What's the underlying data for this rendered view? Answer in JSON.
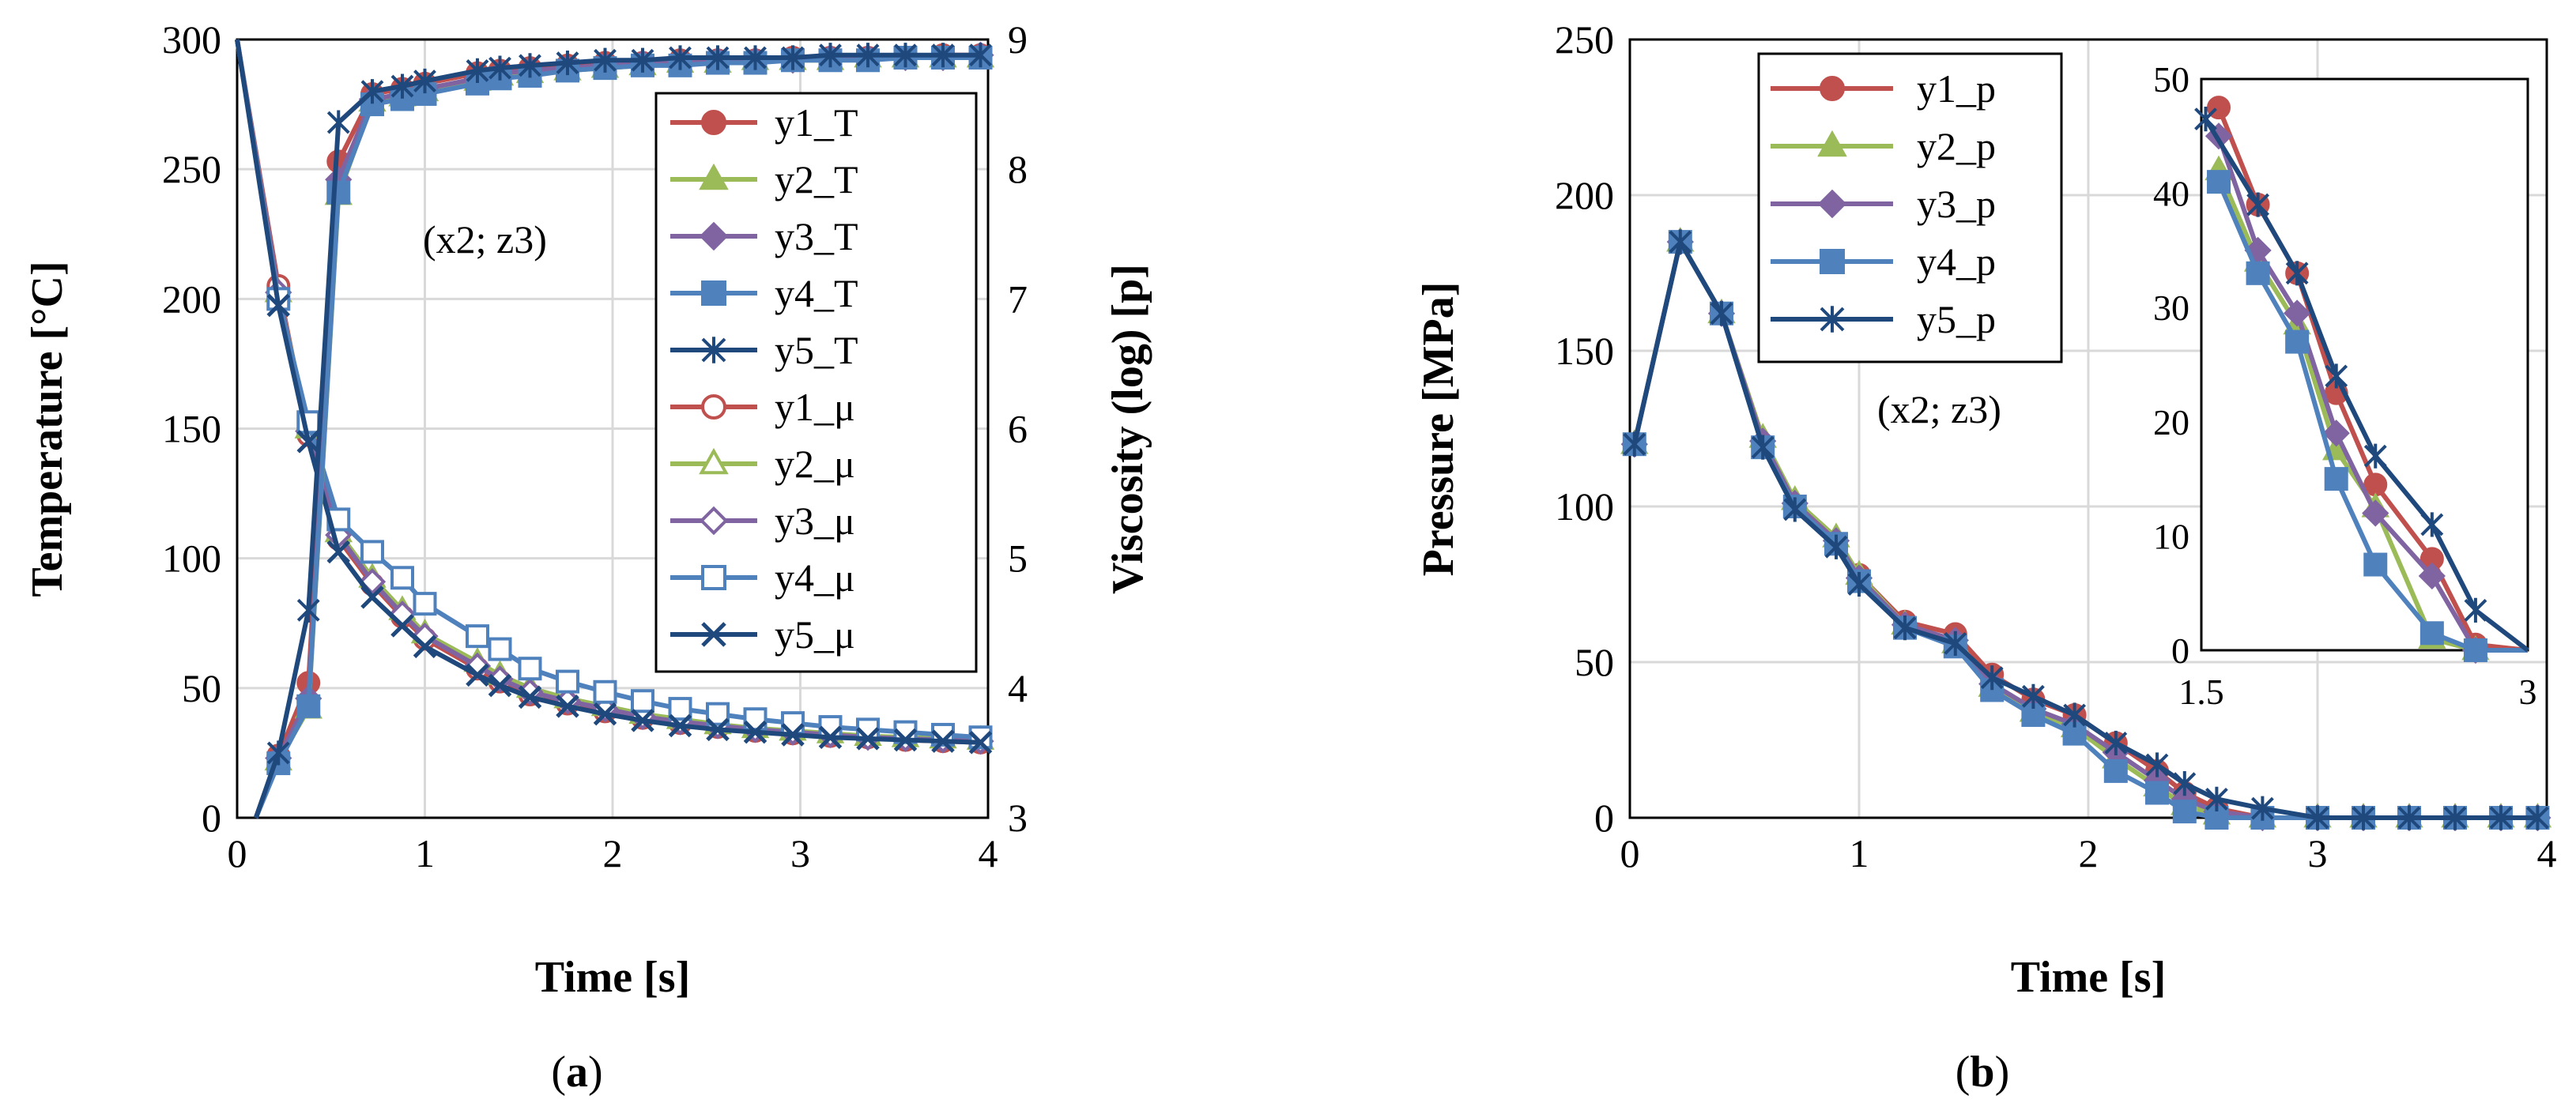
{
  "chart_data": [
    {
      "panel_label_prefix": "(",
      "panel_label": "a",
      "panel_label_suffix": ")",
      "type": "line",
      "annotation": "(x2; z3)",
      "xlabel": "Time [s]",
      "ylabel_left": "Temperature [°C]",
      "ylabel_right": "Viscosity (log) [p]",
      "xlim": [
        0,
        4
      ],
      "ylim_left": [
        0,
        300
      ],
      "ylim_right": [
        3,
        9
      ],
      "xticks": [
        0,
        1,
        2,
        3,
        4
      ],
      "yticks_left": [
        0,
        50,
        100,
        150,
        200,
        250,
        300
      ],
      "yticks_right": [
        3,
        4,
        5,
        6,
        7,
        8,
        9
      ],
      "grid": true,
      "legend_position": "top-right",
      "series": [
        {
          "name": "y1_T",
          "axis": "left",
          "marker": "circle-filled",
          "color": "#C0504D",
          "x": [
            0.1,
            0.22,
            0.38,
            0.54,
            0.72,
            0.88,
            1.0,
            1.28,
            1.4,
            1.56,
            1.76,
            1.96,
            2.16,
            2.36,
            2.56,
            2.76,
            2.96,
            3.16,
            3.36,
            3.56,
            3.76,
            3.96
          ],
          "y": [
            0,
            24,
            52,
            253,
            279,
            281,
            283,
            287,
            288,
            289,
            290,
            291,
            291,
            292,
            292,
            292,
            293,
            293,
            293,
            293,
            294,
            294
          ]
        },
        {
          "name": "y2_T",
          "axis": "left",
          "marker": "triangle-filled",
          "color": "#9BBB59",
          "x": [
            0.1,
            0.22,
            0.38,
            0.54,
            0.72,
            0.88,
            1.0,
            1.28,
            1.4,
            1.56,
            1.76,
            1.96,
            2.16,
            2.36,
            2.56,
            2.76,
            2.96,
            3.16,
            3.36,
            3.56,
            3.76,
            3.96
          ],
          "y": [
            0,
            22,
            42,
            240,
            276,
            278,
            280,
            284,
            286,
            287,
            288,
            289,
            290,
            291,
            291,
            292,
            292,
            292,
            293,
            293,
            293,
            293
          ]
        },
        {
          "name": "y3_T",
          "axis": "left",
          "marker": "diamond-filled",
          "color": "#8064A2",
          "x": [
            0.1,
            0.22,
            0.38,
            0.54,
            0.72,
            0.88,
            1.0,
            1.28,
            1.4,
            1.56,
            1.76,
            1.96,
            2.16,
            2.36,
            2.56,
            2.76,
            2.96,
            3.16,
            3.36,
            3.56,
            3.76,
            3.96
          ],
          "y": [
            0,
            23,
            46,
            246,
            277,
            279,
            281,
            285,
            287,
            288,
            289,
            290,
            291,
            291,
            292,
            292,
            292,
            293,
            293,
            293,
            293,
            294
          ]
        },
        {
          "name": "y4_T",
          "axis": "left",
          "marker": "square-filled",
          "color": "#4F81BD",
          "x": [
            0.1,
            0.22,
            0.38,
            0.54,
            0.72,
            0.88,
            1.0,
            1.28,
            1.4,
            1.56,
            1.76,
            1.96,
            2.16,
            2.36,
            2.56,
            2.76,
            2.96,
            3.16,
            3.36,
            3.56,
            3.76,
            3.96
          ],
          "y": [
            0,
            21,
            43,
            241,
            275,
            277,
            279,
            283,
            285,
            286,
            288,
            289,
            290,
            290,
            291,
            291,
            292,
            292,
            292,
            293,
            293,
            293
          ]
        },
        {
          "name": "y5_T",
          "axis": "left",
          "marker": "asterisk",
          "color": "#1F497D",
          "x": [
            0.1,
            0.22,
            0.38,
            0.54,
            0.72,
            0.88,
            1.0,
            1.28,
            1.4,
            1.56,
            1.76,
            1.96,
            2.16,
            2.36,
            2.56,
            2.76,
            2.96,
            3.16,
            3.36,
            3.56,
            3.76,
            3.96
          ],
          "y": [
            0,
            25,
            80,
            268,
            280,
            282,
            284,
            288,
            289,
            290,
            291,
            292,
            292,
            293,
            293,
            293,
            293,
            294,
            294,
            294,
            294,
            294
          ]
        },
        {
          "name": "y1_μ",
          "axis": "right",
          "marker": "circle-open",
          "color": "#C0504D",
          "x": [
            0.0,
            0.22,
            0.38,
            0.54,
            0.72,
            0.88,
            1.0,
            1.28,
            1.4,
            1.56,
            1.76,
            1.96,
            2.16,
            2.36,
            2.56,
            2.76,
            2.96,
            3.16,
            3.36,
            3.56,
            3.76,
            3.96
          ],
          "y": [
            9.0,
            7.1,
            5.95,
            5.15,
            4.8,
            4.55,
            4.38,
            4.15,
            4.05,
            3.95,
            3.88,
            3.82,
            3.77,
            3.73,
            3.7,
            3.67,
            3.65,
            3.63,
            3.62,
            3.6,
            3.59,
            3.58
          ]
        },
        {
          "name": "y2_μ",
          "axis": "right",
          "marker": "triangle-open",
          "color": "#9BBB59",
          "x": [
            0.0,
            0.22,
            0.38,
            0.54,
            0.72,
            0.88,
            1.0,
            1.28,
            1.4,
            1.56,
            1.76,
            1.96,
            2.16,
            2.36,
            2.56,
            2.76,
            2.96,
            3.16,
            3.36,
            3.56,
            3.76,
            3.96
          ],
          "y": [
            9.0,
            7.05,
            6.0,
            5.2,
            4.85,
            4.6,
            4.42,
            4.2,
            4.1,
            4.0,
            3.92,
            3.86,
            3.8,
            3.76,
            3.72,
            3.69,
            3.67,
            3.65,
            3.63,
            3.62,
            3.61,
            3.6
          ]
        },
        {
          "name": "y3_μ",
          "axis": "right",
          "marker": "diamond-open",
          "color": "#8064A2",
          "x": [
            0.0,
            0.22,
            0.38,
            0.54,
            0.72,
            0.88,
            1.0,
            1.28,
            1.4,
            1.56,
            1.76,
            1.96,
            2.16,
            2.36,
            2.56,
            2.76,
            2.96,
            3.16,
            3.36,
            3.56,
            3.76,
            3.96
          ],
          "y": [
            9.0,
            7.05,
            5.98,
            5.18,
            4.82,
            4.57,
            4.4,
            4.17,
            4.07,
            3.97,
            3.9,
            3.84,
            3.78,
            3.74,
            3.71,
            3.68,
            3.66,
            3.64,
            3.62,
            3.61,
            3.6,
            3.59
          ]
        },
        {
          "name": "y4_μ",
          "axis": "right",
          "marker": "square-open",
          "color": "#4F81BD",
          "x": [
            0.0,
            0.22,
            0.38,
            0.54,
            0.72,
            0.88,
            1.0,
            1.28,
            1.4,
            1.56,
            1.76,
            1.96,
            2.16,
            2.36,
            2.56,
            2.76,
            2.96,
            3.16,
            3.36,
            3.56,
            3.76,
            3.96
          ],
          "y": [
            9.0,
            7.0,
            6.05,
            5.3,
            5.05,
            4.85,
            4.65,
            4.4,
            4.3,
            4.15,
            4.05,
            3.97,
            3.9,
            3.84,
            3.8,
            3.76,
            3.73,
            3.7,
            3.68,
            3.66,
            3.64,
            3.62
          ]
        },
        {
          "name": "y5_μ",
          "axis": "right",
          "marker": "x",
          "color": "#1F497D",
          "x": [
            0.0,
            0.22,
            0.38,
            0.54,
            0.72,
            0.88,
            1.0,
            1.28,
            1.4,
            1.56,
            1.76,
            1.96,
            2.16,
            2.36,
            2.56,
            2.76,
            2.96,
            3.16,
            3.36,
            3.56,
            3.76,
            3.96
          ],
          "y": [
            9.0,
            6.95,
            5.9,
            5.05,
            4.7,
            4.48,
            4.32,
            4.1,
            4.02,
            3.93,
            3.86,
            3.8,
            3.75,
            3.71,
            3.68,
            3.66,
            3.64,
            3.62,
            3.61,
            3.6,
            3.59,
            3.58
          ]
        }
      ]
    },
    {
      "panel_label_prefix": "(",
      "panel_label": "b",
      "panel_label_suffix": ")",
      "type": "line",
      "annotation": "(x2; z3)",
      "xlabel": "Time [s]",
      "ylabel": "Pressure [MPa]",
      "xlim": [
        0,
        4
      ],
      "ylim": [
        0,
        250
      ],
      "xticks": [
        0,
        1,
        2,
        3,
        4
      ],
      "yticks": [
        0,
        50,
        100,
        150,
        200,
        250
      ],
      "grid": true,
      "legend_position": "top-center",
      "series": [
        {
          "name": "y1_p",
          "marker": "circle-filled",
          "color": "#C0504D",
          "x": [
            0.02,
            0.22,
            0.4,
            0.58,
            0.72,
            0.9,
            1.0,
            1.2,
            1.42,
            1.58,
            1.76,
            1.94,
            2.12,
            2.3,
            2.42,
            2.56,
            2.76,
            3.0,
            3.2,
            3.4,
            3.6,
            3.8,
            3.96
          ],
          "y": [
            120,
            185,
            162,
            120,
            100,
            88,
            78,
            63,
            59,
            46,
            38,
            33,
            24,
            15,
            8,
            3,
            0,
            0,
            0,
            0,
            0,
            0,
            0
          ]
        },
        {
          "name": "y2_p",
          "marker": "triangle-filled",
          "color": "#9BBB59",
          "x": [
            0.02,
            0.22,
            0.4,
            0.58,
            0.72,
            0.9,
            1.0,
            1.2,
            1.42,
            1.58,
            1.76,
            1.94,
            2.12,
            2.3,
            2.42,
            2.56,
            2.76,
            3.0,
            3.2,
            3.4,
            3.6,
            3.8,
            3.96
          ],
          "y": [
            120,
            185,
            162,
            122,
            102,
            90,
            78,
            62,
            56,
            42,
            34,
            29,
            19,
            10,
            4,
            1,
            0,
            0,
            0,
            0,
            0,
            0,
            0
          ]
        },
        {
          "name": "y3_p",
          "marker": "diamond-filled",
          "color": "#8064A2",
          "x": [
            0.02,
            0.22,
            0.4,
            0.58,
            0.72,
            0.9,
            1.0,
            1.2,
            1.42,
            1.58,
            1.76,
            1.94,
            2.12,
            2.3,
            2.42,
            2.56,
            2.76,
            3.0,
            3.2,
            3.4,
            3.6,
            3.8,
            3.96
          ],
          "y": [
            120,
            185,
            162,
            121,
            101,
            89,
            77,
            62,
            57,
            43,
            35,
            30,
            21,
            12,
            6,
            2,
            0,
            0,
            0,
            0,
            0,
            0,
            0
          ]
        },
        {
          "name": "y4_p",
          "marker": "square-filled",
          "color": "#4F81BD",
          "x": [
            0.02,
            0.22,
            0.4,
            0.58,
            0.72,
            0.9,
            1.0,
            1.2,
            1.42,
            1.58,
            1.76,
            1.94,
            2.12,
            2.3,
            2.42,
            2.56,
            2.76,
            3.0,
            3.2,
            3.4,
            3.6,
            3.8,
            3.96
          ],
          "y": [
            120,
            185,
            162,
            119,
            100,
            88,
            76,
            61,
            55,
            41,
            33,
            27,
            15,
            8,
            2,
            0,
            0,
            0,
            0,
            0,
            0,
            0,
            0
          ]
        },
        {
          "name": "y5_p",
          "marker": "asterisk",
          "color": "#1F497D",
          "x": [
            0.02,
            0.22,
            0.4,
            0.58,
            0.72,
            0.9,
            1.0,
            1.2,
            1.42,
            1.58,
            1.76,
            1.94,
            2.12,
            2.3,
            2.42,
            2.56,
            2.76,
            3.0,
            3.2,
            3.4,
            3.6,
            3.8,
            3.96
          ],
          "y": [
            120,
            185,
            162,
            119,
            99,
            87,
            75,
            61,
            56,
            45,
            39,
            33,
            24,
            17,
            11,
            6,
            3,
            0,
            0,
            0,
            0,
            0,
            0
          ]
        }
      ],
      "inset": {
        "xlim": [
          1.5,
          3
        ],
        "ylim": [
          0,
          50
        ],
        "xticks": [
          1.5,
          3
        ],
        "yticks": [
          0,
          10,
          20,
          30,
          40,
          50
        ],
        "grid": false,
        "series": [
          {
            "name": "y1_p",
            "x": [
              1.58,
              1.76,
              1.94,
              2.12,
              2.3,
              2.56,
              2.76,
              3.0
            ],
            "y": [
              47.5,
              39,
              33,
              22.5,
              14.5,
              8,
              0.5,
              0
            ]
          },
          {
            "name": "y2_p",
            "x": [
              1.58,
              1.76,
              1.94,
              2.12,
              2.3,
              2.56,
              2.76,
              3.0
            ],
            "y": [
              42,
              34,
              28.5,
              17.5,
              12.5,
              1,
              0,
              0
            ]
          },
          {
            "name": "y3_p",
            "x": [
              1.58,
              1.76,
              1.94,
              2.12,
              2.3,
              2.56,
              2.76,
              3.0
            ],
            "y": [
              45,
              35,
              29.5,
              19,
              12,
              6.5,
              0,
              0
            ]
          },
          {
            "name": "y4_p",
            "x": [
              1.58,
              1.76,
              1.94,
              2.12,
              2.3,
              2.56,
              2.76,
              3.0
            ],
            "y": [
              41,
              33,
              27,
              15,
              7.5,
              1.5,
              0,
              0
            ]
          },
          {
            "name": "y5_p",
            "x": [
              1.52,
              1.76,
              1.94,
              2.12,
              2.3,
              2.56,
              2.76,
              3.0
            ],
            "y": [
              46.5,
              39,
              33,
              24,
              17,
              11,
              3.5,
              0
            ]
          }
        ]
      }
    }
  ]
}
